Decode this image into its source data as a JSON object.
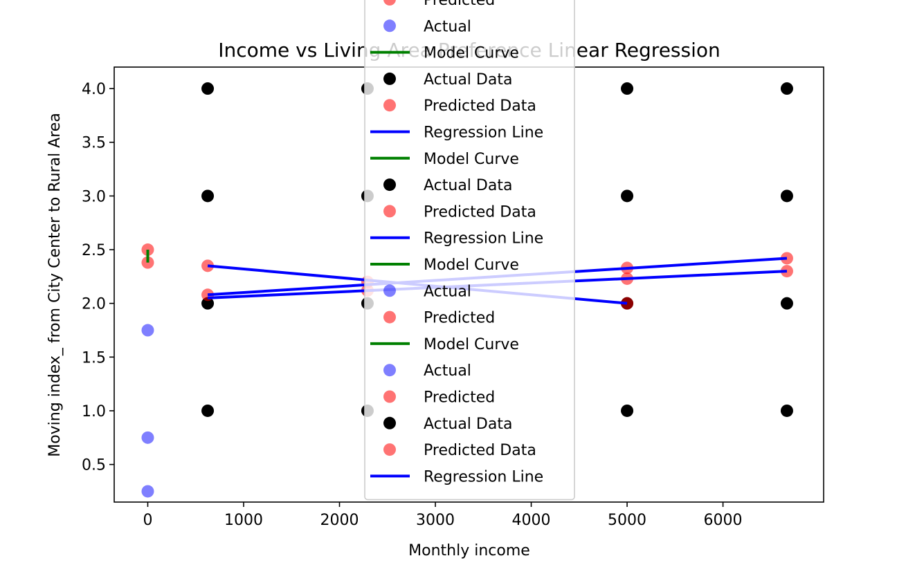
{
  "chart_data": {
    "type": "scatter",
    "title": "Income vs Living Area Preference Linear Regression",
    "xlabel": "Monthly income",
    "ylabel": "Moving index_ from City Center to Rural Area",
    "xlim": [
      -350,
      7050
    ],
    "ylim": [
      0.15,
      4.2
    ],
    "xticks": [
      0,
      1000,
      2000,
      3000,
      4000,
      5000,
      6000
    ],
    "yticks": [
      0.5,
      1.0,
      1.5,
      2.0,
      2.5,
      3.0,
      3.5,
      4.0
    ],
    "ytick_labels": [
      "0.5",
      "1.0",
      "1.5",
      "2.0",
      "2.5",
      "3.0",
      "3.5",
      "4.0"
    ],
    "grid": false,
    "legend_location": "upper center",
    "colors": {
      "actual_data": "#000000",
      "predicted": "#ff0000",
      "actual": "#0000ff",
      "regression": "#0000ff",
      "model": "#008000"
    },
    "series": [
      {
        "name": "Actual Data",
        "kind": "scatter",
        "color": "#000000",
        "alpha": 1.0,
        "points": [
          [
            625,
            4
          ],
          [
            625,
            3
          ],
          [
            625,
            2
          ],
          [
            625,
            1
          ],
          [
            2292,
            4
          ],
          [
            2292,
            3
          ],
          [
            2292,
            2
          ],
          [
            2292,
            1
          ],
          [
            5000,
            4
          ],
          [
            5000,
            3
          ],
          [
            5000,
            2
          ],
          [
            5000,
            1
          ],
          [
            6667,
            4
          ],
          [
            6667,
            3
          ],
          [
            6667,
            2
          ],
          [
            6667,
            1
          ]
        ]
      },
      {
        "name": "Predicted Data",
        "kind": "scatter",
        "color": "#ff0000",
        "alpha": 0.55,
        "points": [
          [
            0,
            2.5
          ],
          [
            0,
            2.38
          ],
          [
            625,
            2.35
          ],
          [
            625,
            2.08
          ],
          [
            2292,
            2.2
          ],
          [
            2292,
            2.12
          ],
          [
            5000,
            2.33
          ],
          [
            5000,
            2.23
          ],
          [
            5000,
            2.0
          ],
          [
            6667,
            2.42
          ],
          [
            6667,
            2.3
          ]
        ]
      },
      {
        "name": "Actual",
        "kind": "scatter",
        "color": "#0000ff",
        "alpha": 0.5,
        "points": [
          [
            0,
            1.75
          ],
          [
            0,
            0.75
          ],
          [
            0,
            0.25
          ]
        ]
      },
      {
        "name": "Regression Line",
        "kind": "line",
        "color": "#0000ff",
        "points": [
          [
            625,
            2.35
          ],
          [
            5000,
            2.0
          ]
        ]
      },
      {
        "name": "Regression Line",
        "kind": "line",
        "color": "#0000ff",
        "points": [
          [
            625,
            2.08
          ],
          [
            6667,
            2.42
          ]
        ]
      },
      {
        "name": "Regression Line",
        "kind": "line",
        "color": "#0000ff",
        "points": [
          [
            625,
            2.05
          ],
          [
            6667,
            2.3
          ]
        ]
      },
      {
        "name": "Model Curve",
        "kind": "line",
        "color": "#008000",
        "points": [
          [
            0,
            2.38
          ],
          [
            0,
            2.5
          ]
        ]
      }
    ],
    "legend": [
      {
        "label": "Predicted",
        "kind": "marker",
        "color": "#ff0000",
        "alpha": 0.55
      },
      {
        "label": "Actual",
        "kind": "marker",
        "color": "#0000ff",
        "alpha": 0.5
      },
      {
        "label": "Model Curve",
        "kind": "line",
        "color": "#008000"
      },
      {
        "label": "Actual Data",
        "kind": "marker",
        "color": "#000000",
        "alpha": 1
      },
      {
        "label": "Predicted Data",
        "kind": "marker",
        "color": "#ff0000",
        "alpha": 0.55
      },
      {
        "label": "Regression Line",
        "kind": "line",
        "color": "#0000ff"
      },
      {
        "label": "Model Curve",
        "kind": "line",
        "color": "#008000"
      },
      {
        "label": "Actual Data",
        "kind": "marker",
        "color": "#000000",
        "alpha": 1
      },
      {
        "label": "Predicted Data",
        "kind": "marker",
        "color": "#ff0000",
        "alpha": 0.55
      },
      {
        "label": "Regression Line",
        "kind": "line",
        "color": "#0000ff"
      },
      {
        "label": "Model Curve",
        "kind": "line",
        "color": "#008000"
      },
      {
        "label": "Actual",
        "kind": "marker",
        "color": "#0000ff",
        "alpha": 0.5
      },
      {
        "label": "Predicted",
        "kind": "marker",
        "color": "#ff0000",
        "alpha": 0.55
      },
      {
        "label": "Model Curve",
        "kind": "line",
        "color": "#008000"
      },
      {
        "label": "Actual",
        "kind": "marker",
        "color": "#0000ff",
        "alpha": 0.5
      },
      {
        "label": "Predicted",
        "kind": "marker",
        "color": "#ff0000",
        "alpha": 0.55
      },
      {
        "label": "Actual Data",
        "kind": "marker",
        "color": "#000000",
        "alpha": 1
      },
      {
        "label": "Predicted Data",
        "kind": "marker",
        "color": "#ff0000",
        "alpha": 0.55
      },
      {
        "label": "Regression Line",
        "kind": "line",
        "color": "#0000ff"
      }
    ]
  }
}
